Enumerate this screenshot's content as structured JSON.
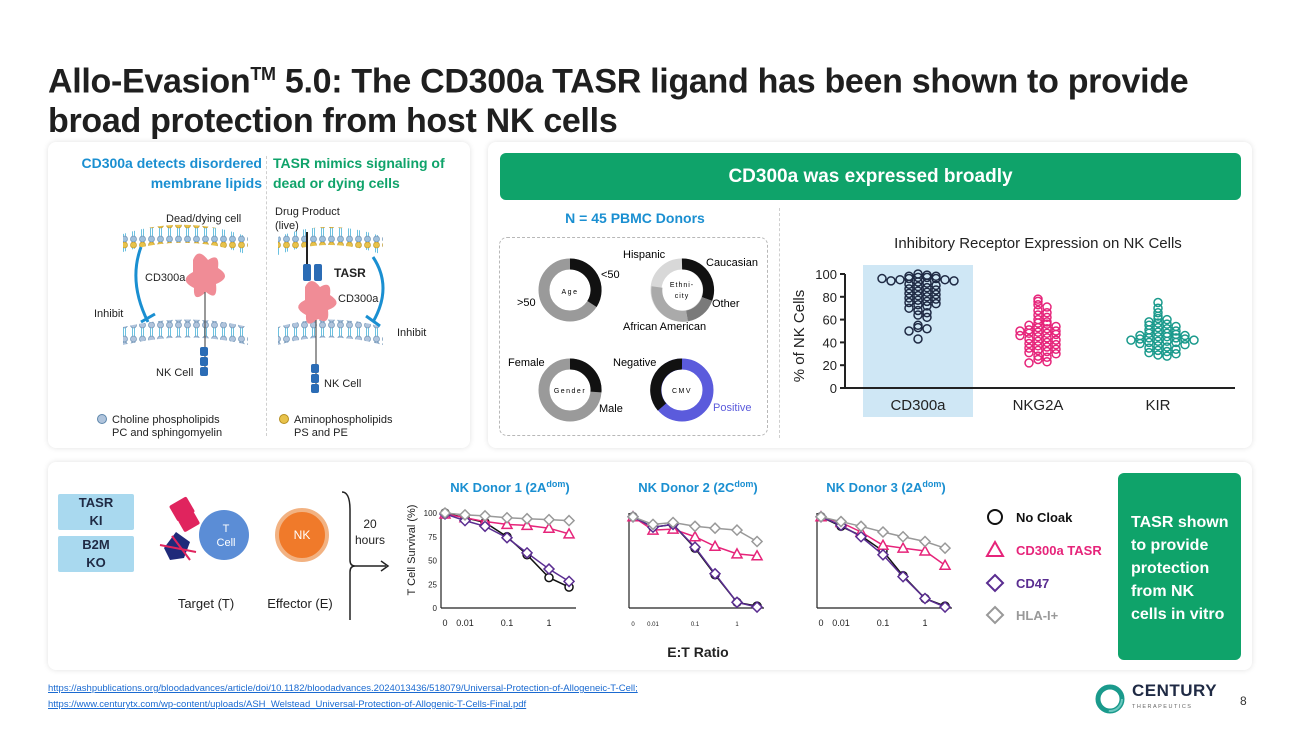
{
  "title": {
    "prefix": "Allo-Evasion",
    "tm": "TM",
    "rest": " 5.0: The CD300a TASR ligand has been shown to provide broad protection from host NK cells"
  },
  "left_panel": {
    "heading_left_line1": "CD300a detects disordered",
    "heading_left_line2": "membrane lipids",
    "heading_right_line1": "TASR mimics signaling of",
    "heading_right_line2": "dead or dying cells",
    "dead_cell": "Dead/dying cell",
    "cd300a": "CD300a",
    "inhibit": "Inhibit",
    "nk_cell": "NK Cell",
    "drug_product_line1": "Drug Product",
    "drug_product_line2": "(live)",
    "tasr": "TASR",
    "legend_left_line1": "Choline phospholipids",
    "legend_left_line2": "PC and sphingomyelin",
    "legend_right_line1": "Aminophospholipids",
    "legend_right_line2": "PS and PE"
  },
  "right_panel": {
    "banner": "CD300a was expressed broadly",
    "donors_title": "N = 45 PBMC Donors",
    "donuts": [
      {
        "center": "Age",
        "labels": [
          "<50",
          ">50"
        ]
      },
      {
        "center": "Ethni-city",
        "labels": [
          "Hispanic",
          "Caucasian",
          "Other",
          "African American"
        ]
      },
      {
        "center": "Gender",
        "labels": [
          "Female",
          "Male"
        ]
      },
      {
        "center": "CMV",
        "labels": [
          "Negative",
          "Positive"
        ]
      }
    ],
    "colors": {
      "green": "#0fa36a",
      "blue": "#1a8fd1",
      "pink": "#e6247a",
      "teal": "#1a9a8c",
      "cmv_positive": "#5b5bdc"
    }
  },
  "chart_data": [
    {
      "type": "scatter",
      "title": "Inhibitory Receptor Expression on NK Cells",
      "ylabel": "% of NK Cells",
      "ylim": [
        0,
        100
      ],
      "yticks": [
        0,
        20,
        40,
        60,
        80,
        100
      ],
      "categories": [
        "CD300a",
        "NKG2A",
        "KIR"
      ],
      "series": [
        {
          "name": "CD300a",
          "values": [
            100,
            99,
            98,
            97,
            97,
            96,
            96,
            95,
            95,
            94,
            94,
            93,
            92,
            91,
            90,
            89,
            88,
            87,
            86,
            85,
            84,
            83,
            82,
            81,
            80,
            79,
            78,
            77,
            76,
            75,
            74,
            73,
            72,
            70,
            68,
            66,
            64,
            62,
            55,
            53,
            52,
            50,
            43,
            98,
            96
          ]
        },
        {
          "name": "NKG2A",
          "values": [
            78,
            76,
            73,
            71,
            68,
            66,
            64,
            62,
            60,
            58,
            57,
            56,
            55,
            54,
            53,
            52,
            51,
            50,
            50,
            49,
            48,
            48,
            47,
            46,
            45,
            44,
            43,
            42,
            41,
            40,
            39,
            38,
            37,
            36,
            35,
            34,
            33,
            32,
            31,
            30,
            28,
            27,
            25,
            23,
            22
          ]
        },
        {
          "name": "KIR",
          "values": [
            75,
            70,
            66,
            63,
            61,
            60,
            58,
            57,
            56,
            55,
            54,
            53,
            52,
            51,
            50,
            49,
            48,
            48,
            47,
            46,
            46,
            45,
            45,
            44,
            44,
            43,
            43,
            42,
            42,
            41,
            41,
            40,
            40,
            39,
            38,
            37,
            36,
            35,
            34,
            33,
            32,
            31,
            30,
            29,
            28
          ]
        }
      ]
    },
    {
      "type": "line",
      "title": "NK Donor 1 (2A",
      "title_sup": "dom",
      "title_end": ")",
      "ylabel": "T Cell Survival (%)",
      "xlabel": "E:T Ratio",
      "ylim": [
        0,
        100
      ],
      "yticks": [
        0,
        25,
        50,
        75,
        100
      ],
      "xticks": [
        "0",
        "0.01",
        "0.1",
        "1"
      ],
      "x": [
        0,
        0.01,
        0.03,
        0.1,
        0.3,
        1,
        3
      ],
      "series": [
        {
          "name": "No Cloak",
          "values": [
            100,
            95,
            90,
            75,
            56,
            32,
            22
          ]
        },
        {
          "name": "CD300a TASR",
          "values": [
            99,
            95,
            91,
            88,
            87,
            84,
            78
          ]
        },
        {
          "name": "CD47",
          "values": [
            99,
            92,
            86,
            74,
            58,
            41,
            28
          ]
        },
        {
          "name": "HLA-I+",
          "values": [
            100,
            98,
            97,
            95,
            94,
            93,
            92
          ]
        }
      ]
    },
    {
      "type": "line",
      "title": "NK Donor 2 (2C",
      "title_sup": "dom",
      "title_end": ")",
      "ylim": [
        0,
        100
      ],
      "xticks": [
        "0",
        "0.01",
        "0.1",
        "1"
      ],
      "x": [
        0,
        0.01,
        0.03,
        0.1,
        0.3,
        1,
        3
      ],
      "series": [
        {
          "name": "No Cloak",
          "values": [
            96,
            85,
            88,
            63,
            35,
            6,
            2
          ]
        },
        {
          "name": "CD300a TASR",
          "values": [
            96,
            82,
            83,
            75,
            65,
            57,
            55
          ]
        },
        {
          "name": "CD47",
          "values": [
            96,
            85,
            88,
            64,
            36,
            6,
            1
          ]
        },
        {
          "name": "HLA-I+",
          "values": [
            96,
            88,
            90,
            86,
            84,
            82,
            70
          ]
        }
      ]
    },
    {
      "type": "line",
      "title": "NK Donor 3 (2A",
      "title_sup": "dom",
      "title_end": ")",
      "ylim": [
        0,
        100
      ],
      "xticks": [
        "0",
        "0.01",
        "0.1",
        "1"
      ],
      "x": [
        0,
        0.01,
        0.03,
        0.1,
        0.3,
        1,
        3
      ],
      "series": [
        {
          "name": "No Cloak",
          "values": [
            96,
            86,
            76,
            60,
            34,
            10,
            2
          ]
        },
        {
          "name": "CD300a TASR",
          "values": [
            96,
            90,
            80,
            66,
            63,
            60,
            45
          ]
        },
        {
          "name": "CD47",
          "values": [
            96,
            87,
            75,
            56,
            33,
            10,
            1
          ]
        },
        {
          "name": "HLA-I+",
          "values": [
            96,
            91,
            86,
            80,
            75,
            70,
            63
          ]
        }
      ]
    }
  ],
  "bottom_panel": {
    "tag_tasr_line1": "TASR",
    "tag_tasr_line2": "KI",
    "tag_b2m_line1": "B2M",
    "tag_b2m_line2": "KO",
    "t_cell_line1": "T",
    "t_cell_line2": "Cell",
    "nk": "NK",
    "target": "Target (T)",
    "effector": "Effector (E)",
    "hours_line1": "20",
    "hours_line2": "hours",
    "legend": [
      "No Cloak",
      "CD300a TASR",
      "CD47",
      "HLA-I+"
    ],
    "legend_colors": [
      "#111111",
      "#e6247a",
      "#5a2d91",
      "#999999"
    ],
    "xlabel": "E:T Ratio",
    "tasr_box": [
      "TASR shown",
      "to provide",
      "protection",
      "from NK",
      "cells in vitro"
    ]
  },
  "footer": {
    "link1": "https://ashpublications.org/bloodadvances/article/doi/10.1182/bloodadvances.2024013436/518079/Universal-Protection-of-Allogeneic-T-Cell;",
    "link2": "https://www.centurytx.com/wp-content/uploads/ASH_Welstead_Universal-Protection-of-Allogenic-T-Cells-Final.pdf",
    "logo_text": "CENTURY",
    "logo_sub": "THERAPEUTICS",
    "page": "8"
  }
}
